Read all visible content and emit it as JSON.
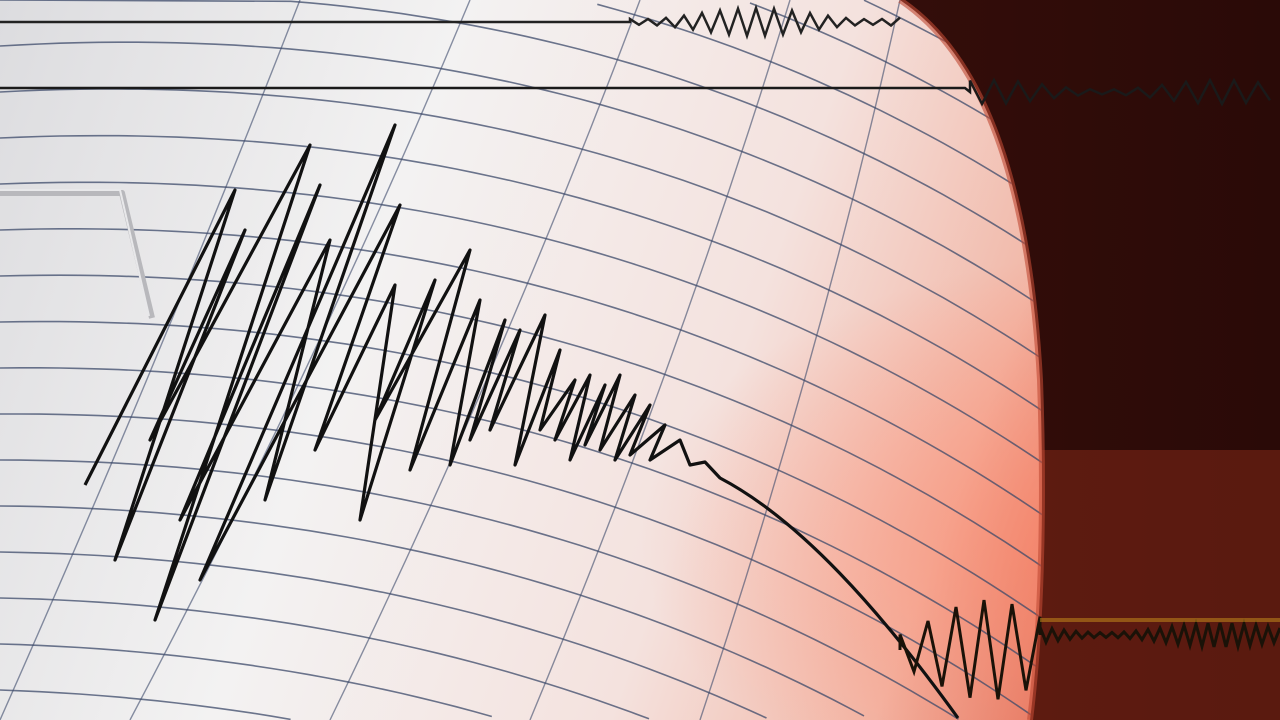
{
  "scene": {
    "subject": "seismograph-drum",
    "colors": {
      "paper_light": "#f4f1f0",
      "paper_warm": "#f0c4bc",
      "edge_glow": "#e8806a",
      "background_dark": "#3a100b",
      "grid_line": "#3c4a6a",
      "trace": "#111111",
      "stylus": "#b8b8bc"
    }
  }
}
